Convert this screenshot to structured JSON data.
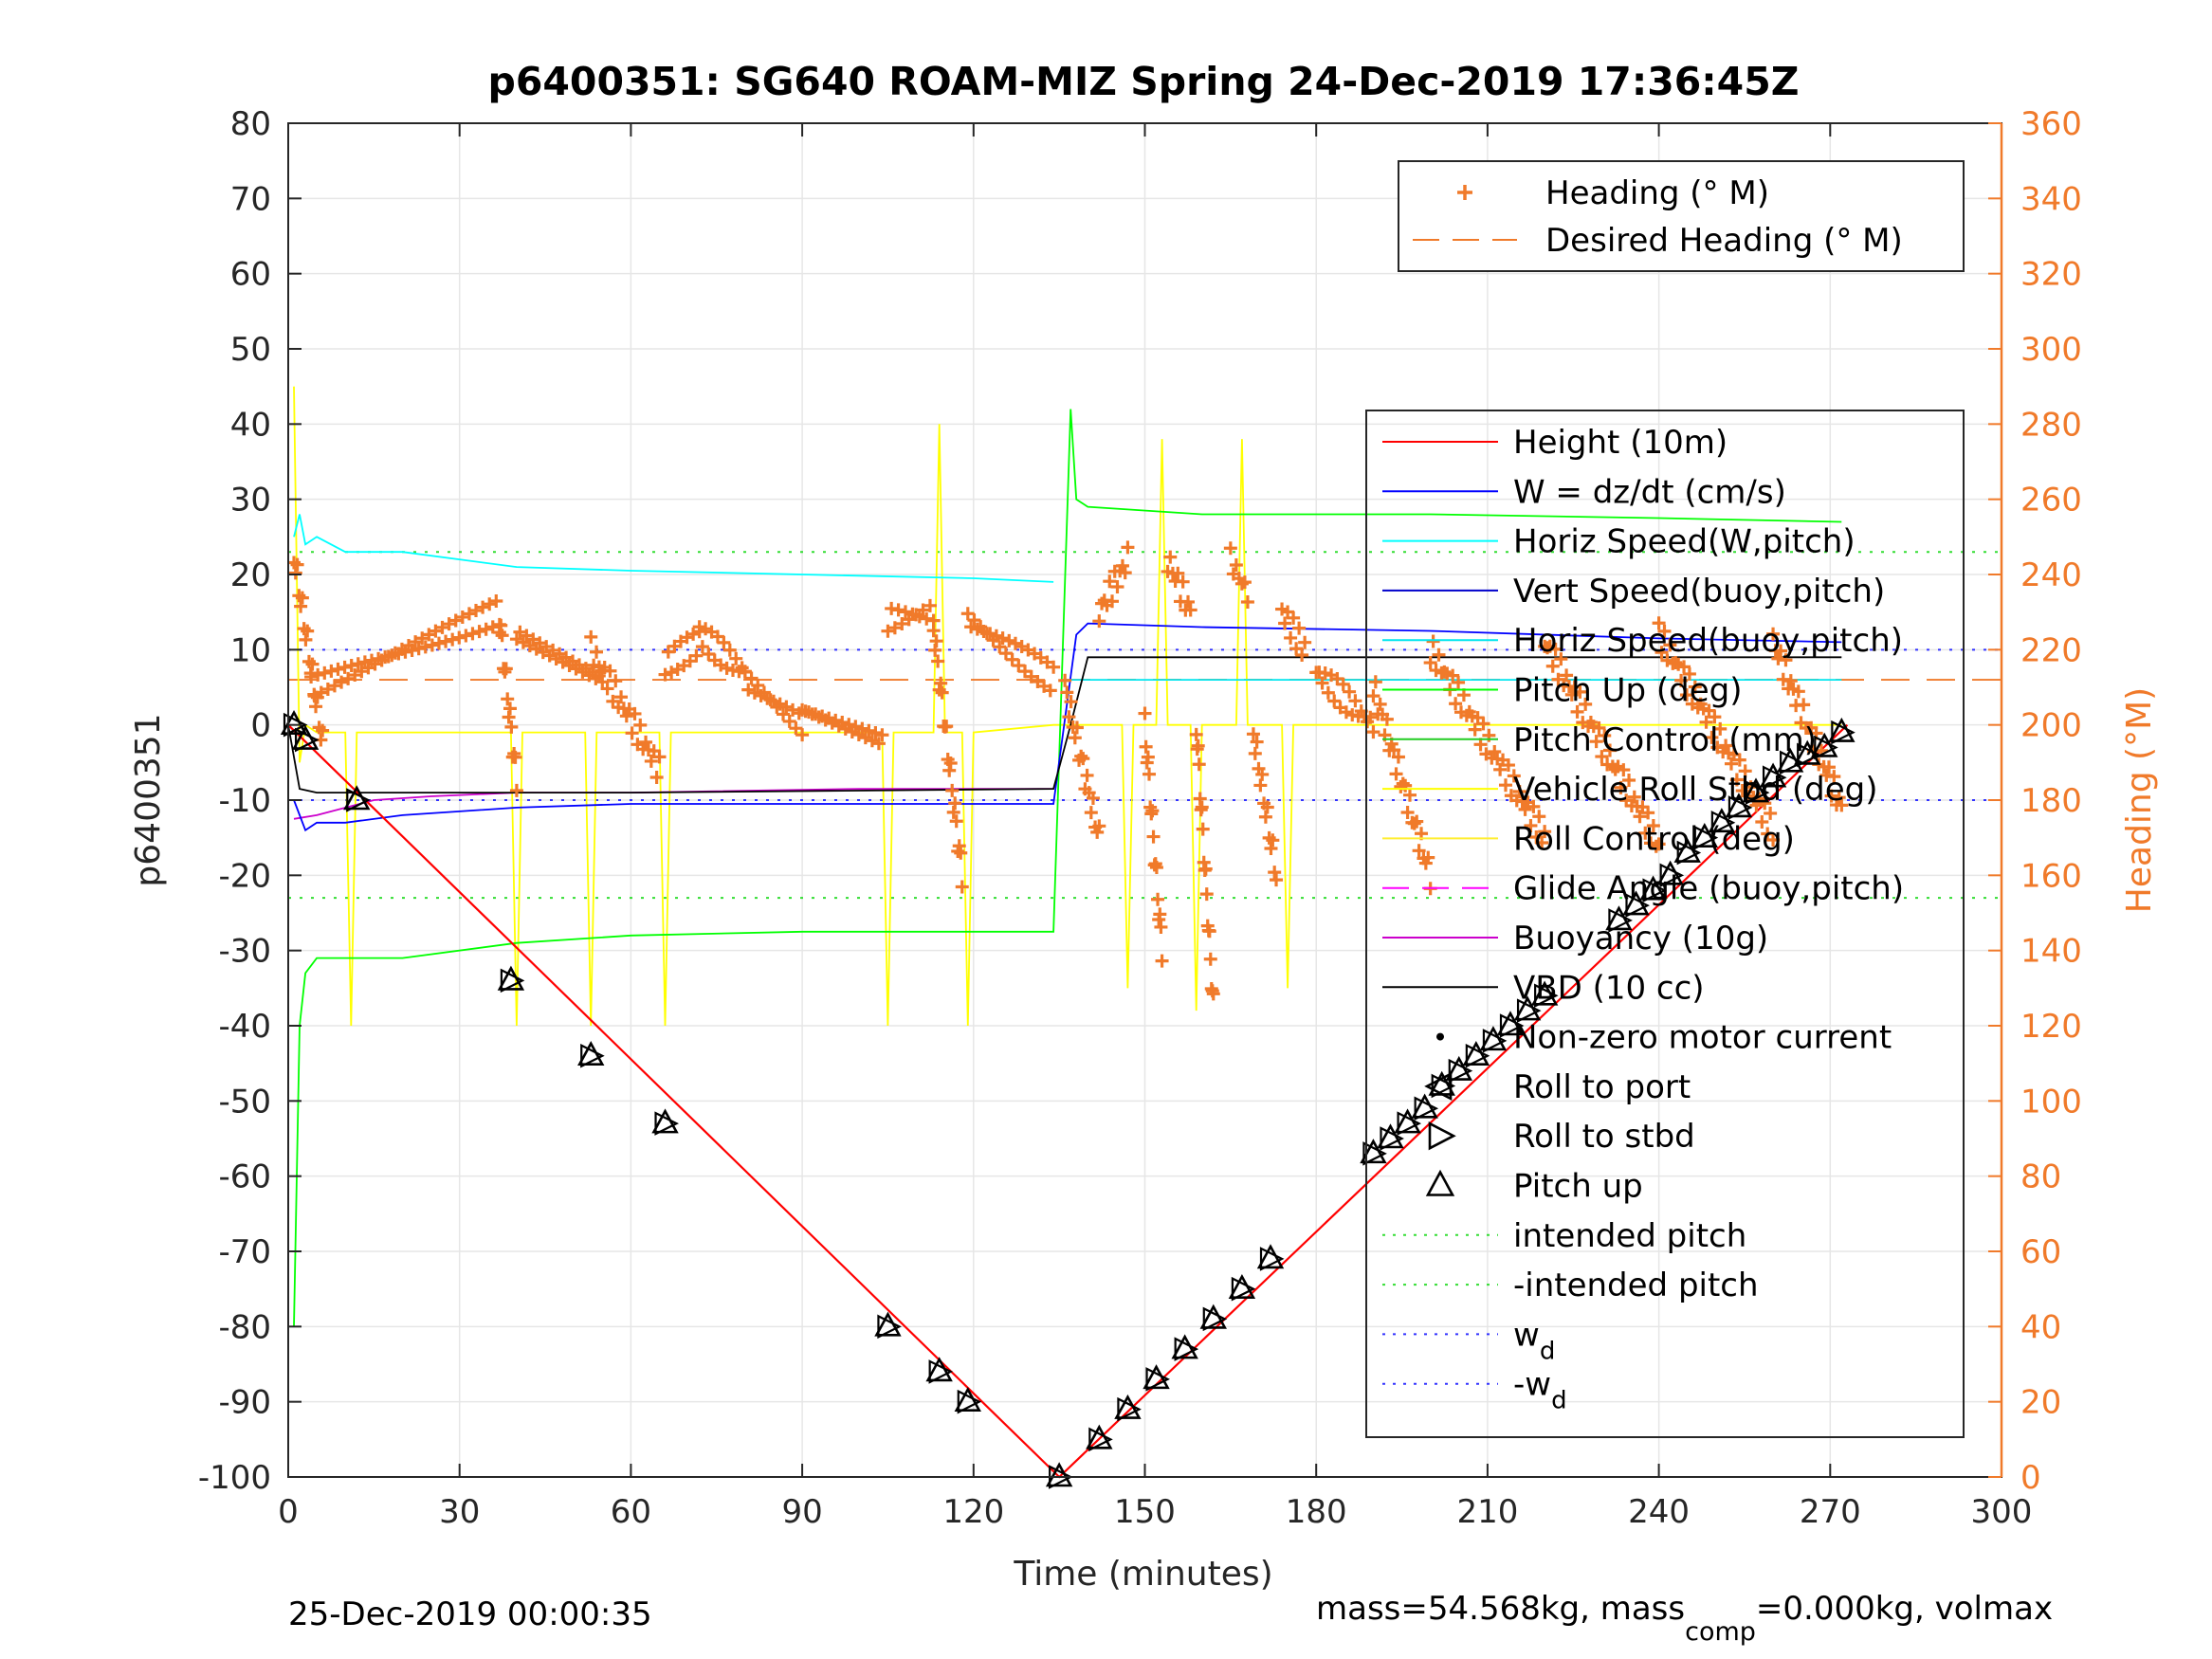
{
  "chart_data": {
    "type": "line",
    "title": "p6400351: SG640 ROAM-MIZ Spring 24-Dec-2019 17:36:45Z",
    "xlabel": "Time (minutes)",
    "ylabel": "p6400351",
    "ylabel_right": "Heading (°M)",
    "xlim": [
      0,
      300
    ],
    "ylim": [
      -100,
      80
    ],
    "ylim_right": [
      0,
      360
    ],
    "xticks": [
      0,
      30,
      60,
      90,
      120,
      150,
      180,
      210,
      240,
      270,
      300
    ],
    "yticks": [
      -100,
      -90,
      -80,
      -70,
      -60,
      -50,
      -40,
      -30,
      -20,
      -10,
      0,
      10,
      20,
      30,
      40,
      50,
      60,
      70,
      80
    ],
    "yticks_right": [
      0,
      20,
      40,
      60,
      80,
      100,
      120,
      140,
      160,
      180,
      200,
      220,
      240,
      260,
      280,
      300,
      320,
      340,
      360
    ],
    "grid": true,
    "legend_top": {
      "placement": "top-right",
      "entries": [
        {
          "label": "Heading (° M)",
          "color": "#f07a2a",
          "style": "plus"
        },
        {
          "label": "Desired Heading (° M)",
          "color": "#f07a2a",
          "style": "dash"
        }
      ]
    },
    "legend_main": {
      "placement": "right",
      "entries": [
        {
          "label": "Height (10m)",
          "color": "#ff0000",
          "style": "line"
        },
        {
          "label": "W = dz/dt (cm/s)",
          "color": "#0000ff",
          "style": "line"
        },
        {
          "label": "Horiz Speed(W,pitch)",
          "color": "#00ffff",
          "style": "line"
        },
        {
          "label": "Vert Speed(buoy,pitch)",
          "color": "#0000cc",
          "style": "line"
        },
        {
          "label": "Horiz Speed(buoy,pitch)",
          "color": "#00e5ee",
          "style": "line"
        },
        {
          "label": "Pitch Up (deg)",
          "color": "#00ff00",
          "style": "line"
        },
        {
          "label": "Pitch Control (mm)",
          "color": "#22cc22",
          "style": "line"
        },
        {
          "label": "Vehicle Roll Stbd (deg)",
          "color": "#ffff00",
          "style": "line"
        },
        {
          "label": "Roll Control (deg)",
          "color": "#ffee33",
          "style": "line"
        },
        {
          "label": "Glide Angle (buoy,pitch)",
          "color": "#ff00ff",
          "style": "dash"
        },
        {
          "label": "Buoyancy (10g)",
          "color": "#cc00cc",
          "style": "line"
        },
        {
          "label": "VBD (10 cc)",
          "color": "#000000",
          "style": "line"
        },
        {
          "label": "Non-zero motor current",
          "color": "#000000",
          "style": "dot"
        },
        {
          "label": "Roll to port",
          "color": "#000000",
          "style": "tri-left"
        },
        {
          "label": "Roll to stbd",
          "color": "#000000",
          "style": "tri-right"
        },
        {
          "label": "Pitch up",
          "color": "#000000",
          "style": "tri-up"
        },
        {
          "label": "intended pitch",
          "color": "#33dd33",
          "style": "dot-line"
        },
        {
          "label": "-intended pitch",
          "color": "#33dd33",
          "style": "dot-line"
        },
        {
          "label": "w",
          "sub": "d",
          "color": "#3333ff",
          "style": "dot-line"
        },
        {
          "label": "-w",
          "sub": "d",
          "color": "#3333ff",
          "style": "dot-line"
        }
      ]
    },
    "reference_lines": {
      "intended_pitch": 23,
      "w_d": 10,
      "desired_heading_deg": 212
    },
    "series": [
      {
        "name": "Height (10m)",
        "color": "#ff0000",
        "x": [
          0,
          135,
          273
        ],
        "y": [
          0,
          -100,
          0
        ]
      },
      {
        "name": "Horiz Speed(W,pitch)",
        "color": "#00ffff",
        "x": [
          1,
          2,
          3,
          5,
          10,
          20,
          40,
          60,
          90,
          120,
          134
        ],
        "y": [
          25,
          28,
          24,
          25,
          23,
          23,
          21,
          20.5,
          20,
          19.5,
          19
        ]
      },
      {
        "name": "Horiz Speed(buoy,pitch)",
        "color": "#00e5ee",
        "x": [
          136,
          160,
          200,
          240,
          272
        ],
        "y": [
          6,
          6,
          6,
          6,
          6
        ]
      },
      {
        "name": "W = dz/dt (cm/s)",
        "color": "#0000ff",
        "x": [
          1,
          3,
          5,
          10,
          20,
          40,
          60,
          90,
          120,
          134,
          138,
          140,
          160,
          200,
          240,
          272
        ],
        "y": [
          -10,
          -14,
          -13,
          -13,
          -12,
          -11,
          -10.5,
          -10.5,
          -10.5,
          -10.5,
          12,
          13.5,
          13,
          12.5,
          11.5,
          11
        ]
      },
      {
        "name": "Pitch Up (deg)",
        "color": "#00ff00",
        "x": [
          1,
          2,
          3,
          5,
          10,
          20,
          40,
          60,
          90,
          120,
          134,
          137,
          138,
          140,
          160,
          200,
          240,
          272
        ],
        "y": [
          -80,
          -40,
          -33,
          -31,
          -31,
          -31,
          -29,
          -28,
          -27.5,
          -27.5,
          -27.5,
          42,
          30,
          29,
          28,
          28,
          27.5,
          27
        ]
      },
      {
        "name": "VBD (10 cc)",
        "color": "#000000",
        "x": [
          0,
          2,
          5,
          20,
          60,
          134,
          137,
          140,
          200,
          272
        ],
        "y": [
          0,
          -8.5,
          -9,
          -9,
          -9,
          -8.5,
          0,
          9,
          9,
          9
        ]
      },
      {
        "name": "Buoyancy (10g)",
        "color": "#cc00cc",
        "x": [
          1,
          5,
          15,
          25,
          40,
          60,
          100,
          134
        ],
        "y": [
          -12.5,
          -12,
          -10,
          -9.5,
          -9,
          -9,
          -8.5,
          -8.5
        ]
      },
      {
        "name": "Vehicle Roll Stbd (deg)",
        "color": "#ffff00",
        "x": [
          1,
          2,
          3,
          5,
          10,
          11,
          12,
          20,
          39,
          40,
          41,
          52,
          53,
          54,
          65,
          66,
          67,
          104,
          105,
          106,
          113,
          114,
          115,
          118,
          119,
          120,
          134,
          136,
          146,
          147,
          148,
          152,
          153,
          154,
          158,
          159,
          160,
          166,
          167,
          168,
          174,
          175,
          176,
          200,
          220,
          240,
          270,
          272
        ],
        "y": [
          45,
          -5,
          0,
          -1,
          -1,
          -40,
          -1,
          -1,
          -1,
          -40,
          -1,
          -1,
          -40,
          -1,
          -1,
          -40,
          -1,
          -1,
          -40,
          -1,
          -1,
          40,
          -1,
          -1,
          -40,
          -1,
          0,
          0,
          0,
          -35,
          0,
          0,
          38,
          0,
          0,
          -38,
          0,
          0,
          38,
          0,
          0,
          -35,
          0,
          0,
          0,
          0,
          0,
          0
        ]
      }
    ],
    "heading_segments": [
      {
        "x": [
          1,
          6
        ],
        "y": [
          245,
          195
        ]
      },
      {
        "x": [
          4,
          37
        ],
        "y": [
          210,
          230
        ]
      },
      {
        "x": [
          37,
          40
        ],
        "y": [
          228,
          185
        ]
      },
      {
        "x": [
          40,
          55
        ],
        "y": [
          224,
          212
        ]
      },
      {
        "x": [
          53,
          65
        ],
        "y": [
          220,
          188
        ]
      },
      {
        "x": [
          66,
          72
        ],
        "y": [
          216,
          222
        ]
      },
      {
        "x": [
          72,
          80
        ],
        "y": [
          224,
          214
        ]
      },
      {
        "x": [
          80,
          90
        ],
        "y": [
          212,
          200
        ]
      },
      {
        "x": [
          90,
          104
        ],
        "y": [
          204,
          196
        ]
      },
      {
        "x": [
          105,
          113
        ],
        "y": [
          228,
          230
        ]
      },
      {
        "x": [
          113,
          118
        ],
        "y": [
          226,
          160
        ]
      },
      {
        "x": [
          119,
          134
        ],
        "y": [
          228,
          212
        ]
      },
      {
        "x": [
          136,
          142
        ],
        "y": [
          210,
          170
        ]
      },
      {
        "x": [
          142,
          147
        ],
        "y": [
          230,
          244
        ]
      },
      {
        "x": [
          150,
          153
        ],
        "y": [
          200,
          140
        ]
      },
      {
        "x": [
          154,
          158
        ],
        "y": [
          244,
          230
        ]
      },
      {
        "x": [
          159,
          162
        ],
        "y": [
          200,
          125
        ]
      },
      {
        "x": [
          165,
          168
        ],
        "y": [
          244,
          235
        ]
      },
      {
        "x": [
          169,
          173
        ],
        "y": [
          198,
          160
        ]
      },
      {
        "x": [
          174,
          178
        ],
        "y": [
          230,
          220
        ]
      },
      {
        "x": [
          180,
          190
        ],
        "y": [
          214,
          200
        ]
      },
      {
        "x": [
          190,
          200
        ],
        "y": [
          210,
          160
        ]
      },
      {
        "x": [
          200,
          220
        ],
        "y": [
          220,
          170
        ]
      },
      {
        "x": [
          220,
          240
        ],
        "y": [
          222,
          168
        ]
      },
      {
        "x": [
          240,
          260
        ],
        "y": [
          224,
          172
        ]
      },
      {
        "x": [
          260,
          272
        ],
        "y": [
          222,
          178
        ]
      }
    ],
    "markers_pitch_up": {
      "x": [
        1,
        3,
        12,
        39,
        53,
        66,
        105,
        114,
        119,
        135,
        142,
        147,
        152,
        157,
        162,
        167,
        172,
        190,
        193,
        196,
        199,
        202,
        205,
        208,
        211,
        214,
        217,
        220,
        233,
        236,
        239,
        242,
        245,
        248,
        251,
        254,
        257,
        260,
        263,
        266,
        269,
        272
      ],
      "y": [
        0,
        -2,
        -10,
        -34,
        -44,
        -53,
        -80,
        -86,
        -90,
        -100,
        -95,
        -91,
        -87,
        -83,
        -79,
        -75,
        -71,
        -57,
        -55,
        -53,
        -51,
        -48,
        -46,
        -44,
        -42,
        -40,
        -38,
        -36,
        -26,
        -24,
        -22,
        -20,
        -17,
        -15,
        -13,
        -11,
        -9,
        -7,
        -5,
        -4,
        -3,
        -1
      ]
    }
  },
  "footer": {
    "timestamp": "25-Dec-2019 00:00:35",
    "mass_prefix": "mass=54.568kg, mass",
    "mass_sub": "comp",
    "mass_suffix": "=0.000kg, volmax"
  }
}
